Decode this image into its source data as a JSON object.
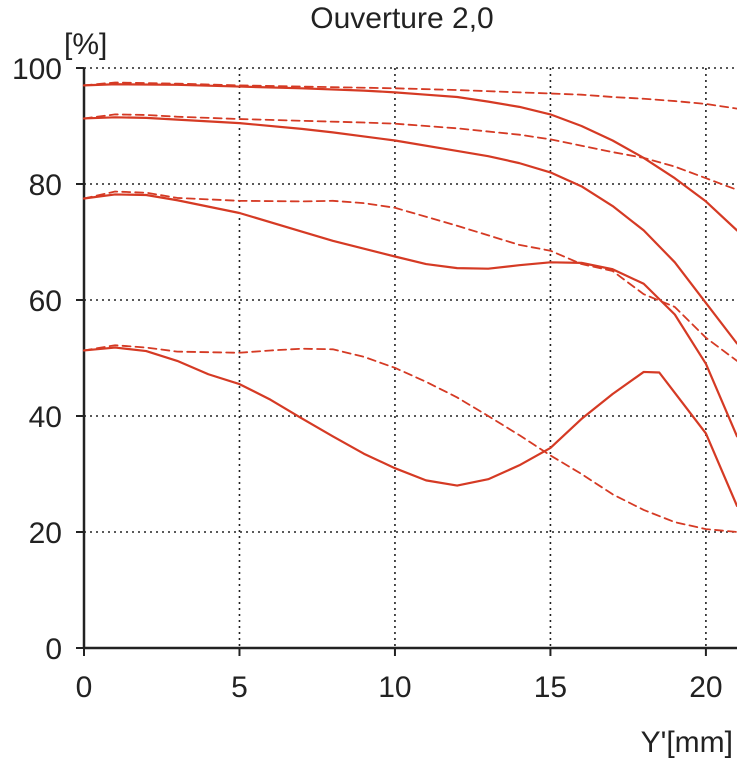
{
  "chart_data": {
    "type": "line",
    "title": "Ouverture 2,0",
    "xlabel": "Y'[mm]",
    "ylabel": "[%]",
    "xlim": [
      0,
      21
    ],
    "ylim": [
      0,
      100
    ],
    "xticks": [
      0,
      5,
      10,
      15,
      20
    ],
    "yticks": [
      0,
      20,
      40,
      60,
      80,
      100
    ],
    "grid": true,
    "colors": {
      "line": "#d53a24",
      "grid": "#222222",
      "axis": "#222222"
    },
    "series": [
      {
        "style": "solid",
        "points": [
          [
            0,
            97.0
          ],
          [
            1,
            97.2
          ],
          [
            3,
            97.1
          ],
          [
            5,
            96.8
          ],
          [
            7,
            96.5
          ],
          [
            9,
            96.1
          ],
          [
            10,
            95.8
          ],
          [
            11,
            95.4
          ],
          [
            12,
            95.0
          ],
          [
            13,
            94.2
          ],
          [
            14,
            93.3
          ],
          [
            15,
            92.0
          ],
          [
            16,
            90.0
          ],
          [
            17,
            87.5
          ],
          [
            18,
            84.5
          ],
          [
            19,
            81.0
          ],
          [
            20,
            77.0
          ],
          [
            21,
            72.0
          ]
        ]
      },
      {
        "style": "dashed",
        "points": [
          [
            0,
            97.0
          ],
          [
            1,
            97.5
          ],
          [
            3,
            97.3
          ],
          [
            5,
            97.0
          ],
          [
            7,
            96.8
          ],
          [
            9,
            96.6
          ],
          [
            10,
            96.5
          ],
          [
            12,
            96.2
          ],
          [
            14,
            95.8
          ],
          [
            15,
            95.6
          ],
          [
            16,
            95.4
          ],
          [
            17,
            95.0
          ],
          [
            18,
            94.7
          ],
          [
            19,
            94.3
          ],
          [
            20,
            93.8
          ],
          [
            21,
            93.0
          ]
        ]
      },
      {
        "style": "solid",
        "points": [
          [
            0,
            91.3
          ],
          [
            1,
            91.5
          ],
          [
            2,
            91.4
          ],
          [
            3,
            91.1
          ],
          [
            5,
            90.5
          ],
          [
            7,
            89.5
          ],
          [
            8,
            88.9
          ],
          [
            10,
            87.5
          ],
          [
            12,
            85.7
          ],
          [
            13,
            84.8
          ],
          [
            14,
            83.6
          ],
          [
            15,
            82.0
          ],
          [
            16,
            79.6
          ],
          [
            17,
            76.2
          ],
          [
            18,
            72.0
          ],
          [
            19,
            66.5
          ],
          [
            20,
            59.5
          ],
          [
            21,
            52.5
          ]
        ]
      },
      {
        "style": "dashed",
        "points": [
          [
            0,
            91.3
          ],
          [
            1,
            92.0
          ],
          [
            2,
            91.9
          ],
          [
            3,
            91.6
          ],
          [
            5,
            91.2
          ],
          [
            7,
            90.9
          ],
          [
            9,
            90.6
          ],
          [
            10,
            90.4
          ],
          [
            12,
            89.6
          ],
          [
            14,
            88.5
          ],
          [
            15,
            87.7
          ],
          [
            16,
            86.6
          ],
          [
            17,
            85.5
          ],
          [
            18,
            84.5
          ],
          [
            19,
            83.0
          ],
          [
            20,
            81.0
          ],
          [
            21,
            79.0
          ]
        ]
      },
      {
        "style": "solid",
        "points": [
          [
            0,
            77.5
          ],
          [
            1,
            78.2
          ],
          [
            2,
            78.1
          ],
          [
            3,
            77.2
          ],
          [
            5,
            75.0
          ],
          [
            7,
            71.8
          ],
          [
            8,
            70.2
          ],
          [
            10,
            67.5
          ],
          [
            11,
            66.2
          ],
          [
            12,
            65.5
          ],
          [
            13,
            65.4
          ],
          [
            14,
            66.0
          ],
          [
            15,
            66.5
          ],
          [
            16,
            66.4
          ],
          [
            17,
            65.3
          ],
          [
            18,
            62.8
          ],
          [
            19,
            57.5
          ],
          [
            20,
            49.0
          ],
          [
            21,
            36.5
          ]
        ]
      },
      {
        "style": "dashed",
        "points": [
          [
            0,
            77.5
          ],
          [
            1,
            78.7
          ],
          [
            2,
            78.5
          ],
          [
            3,
            77.6
          ],
          [
            5,
            77.1
          ],
          [
            7,
            77.0
          ],
          [
            8,
            77.1
          ],
          [
            9,
            76.7
          ],
          [
            10,
            75.9
          ],
          [
            12,
            72.8
          ],
          [
            14,
            69.5
          ],
          [
            15,
            68.5
          ],
          [
            16,
            66.2
          ],
          [
            17,
            65.0
          ],
          [
            18,
            61.0
          ],
          [
            19,
            58.8
          ],
          [
            20,
            53.5
          ],
          [
            21,
            49.5
          ]
        ]
      },
      {
        "style": "solid",
        "points": [
          [
            0,
            51.3
          ],
          [
            1,
            51.8
          ],
          [
            2,
            51.2
          ],
          [
            3,
            49.5
          ],
          [
            4,
            47.2
          ],
          [
            5,
            45.5
          ],
          [
            6,
            42.8
          ],
          [
            7,
            39.6
          ],
          [
            8,
            36.5
          ],
          [
            9,
            33.5
          ],
          [
            10,
            31.0
          ],
          [
            11,
            28.9
          ],
          [
            12,
            28.0
          ],
          [
            13,
            29.1
          ],
          [
            14,
            31.5
          ],
          [
            15,
            34.5
          ],
          [
            16,
            39.5
          ],
          [
            17,
            43.8
          ],
          [
            18,
            47.6
          ],
          [
            18.5,
            47.5
          ],
          [
            19,
            44.0
          ],
          [
            20,
            37.0
          ],
          [
            21,
            24.5
          ]
        ]
      },
      {
        "style": "dashed",
        "points": [
          [
            0,
            51.3
          ],
          [
            1,
            52.2
          ],
          [
            2,
            51.8
          ],
          [
            3,
            51.1
          ],
          [
            5,
            50.9
          ],
          [
            6,
            51.3
          ],
          [
            7,
            51.6
          ],
          [
            8,
            51.5
          ],
          [
            9,
            50.2
          ],
          [
            10,
            48.3
          ],
          [
            11,
            45.9
          ],
          [
            12,
            43.2
          ],
          [
            13,
            40.0
          ],
          [
            14,
            36.7
          ],
          [
            15,
            33.2
          ],
          [
            16,
            30.0
          ],
          [
            17,
            26.5
          ],
          [
            18,
            23.8
          ],
          [
            19,
            21.7
          ],
          [
            20,
            20.5
          ],
          [
            21,
            20.0
          ]
        ]
      }
    ]
  }
}
